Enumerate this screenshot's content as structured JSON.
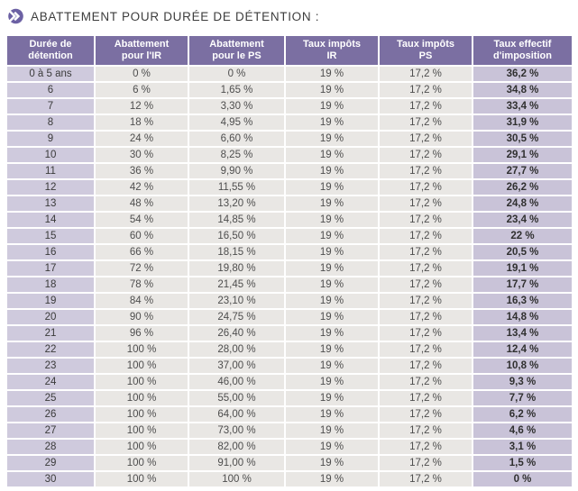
{
  "title": {
    "text": "ABATTEMENT POUR DURÉE DE DÉTENTION :",
    "icon": "double-chevron-icon"
  },
  "colors": {
    "header_purple": "#7b6fa2",
    "light_purple_first_col": "#cfcadd",
    "light_purple_last_col": "#c9c3d8",
    "mid_gray_cell": "#e9e7e4",
    "icon_purple": "#6c61a4",
    "title_text": "#3d3d3d"
  },
  "table": {
    "columns": [
      "Durée de\ndétention",
      "Abattement\npour l'IR",
      "Abattement\npour le PS",
      "Taux impôts\nIR",
      "Taux impôts\nPS",
      "Taux effectif\nd'imposition"
    ],
    "rows": [
      [
        "0 à 5 ans",
        "0 %",
        "0 %",
        "19 %",
        "17,2 %",
        "36,2 %"
      ],
      [
        "6",
        "6 %",
        "1,65 %",
        "19 %",
        "17,2 %",
        "34,8 %"
      ],
      [
        "7",
        "12 %",
        "3,30 %",
        "19 %",
        "17,2 %",
        "33,4 %"
      ],
      [
        "8",
        "18 %",
        "4,95 %",
        "19 %",
        "17,2 %",
        "31,9 %"
      ],
      [
        "9",
        "24 %",
        "6,60 %",
        "19 %",
        "17,2 %",
        "30,5 %"
      ],
      [
        "10",
        "30 %",
        "8,25 %",
        "19 %",
        "17,2 %",
        "29,1 %"
      ],
      [
        "11",
        "36 %",
        "9,90 %",
        "19 %",
        "17,2 %",
        "27,7 %"
      ],
      [
        "12",
        "42 %",
        "11,55 %",
        "19 %",
        "17,2 %",
        "26,2 %"
      ],
      [
        "13",
        "48 %",
        "13,20 %",
        "19 %",
        "17,2 %",
        "24,8 %"
      ],
      [
        "14",
        "54 %",
        "14,85 %",
        "19 %",
        "17,2 %",
        "23,4 %"
      ],
      [
        "15",
        "60 %",
        "16,50 %",
        "19 %",
        "17,2 %",
        "22 %"
      ],
      [
        "16",
        "66 %",
        "18,15 %",
        "19 %",
        "17,2 %",
        "20,5 %"
      ],
      [
        "17",
        "72 %",
        "19,80 %",
        "19 %",
        "17,2 %",
        "19,1 %"
      ],
      [
        "18",
        "78 %",
        "21,45 %",
        "19 %",
        "17,2 %",
        "17,7 %"
      ],
      [
        "19",
        "84 %",
        "23,10 %",
        "19 %",
        "17,2 %",
        "16,3 %"
      ],
      [
        "20",
        "90 %",
        "24,75 %",
        "19 %",
        "17,2 %",
        "14,8 %"
      ],
      [
        "21",
        "96 %",
        "26,40 %",
        "19 %",
        "17,2 %",
        "13,4 %"
      ],
      [
        "22",
        "100 %",
        "28,00 %",
        "19 %",
        "17,2 %",
        "12,4 %"
      ],
      [
        "23",
        "100 %",
        "37,00 %",
        "19 %",
        "17,2 %",
        "10,8 %"
      ],
      [
        "24",
        "100 %",
        "46,00 %",
        "19 %",
        "17,2 %",
        "9,3 %"
      ],
      [
        "25",
        "100 %",
        "55,00 %",
        "19 %",
        "17,2 %",
        "7,7 %"
      ],
      [
        "26",
        "100 %",
        "64,00 %",
        "19 %",
        "17,2 %",
        "6,2 %"
      ],
      [
        "27",
        "100 %",
        "73,00 %",
        "19 %",
        "17,2 %",
        "4,6 %"
      ],
      [
        "28",
        "100 %",
        "82,00 %",
        "19 %",
        "17,2 %",
        "3,1 %"
      ],
      [
        "29",
        "100 %",
        "91,00 %",
        "19 %",
        "17,2 %",
        "1,5 %"
      ],
      [
        "30",
        "100 %",
        "100 %",
        "19 %",
        "17,2 %",
        "0 %"
      ]
    ]
  }
}
